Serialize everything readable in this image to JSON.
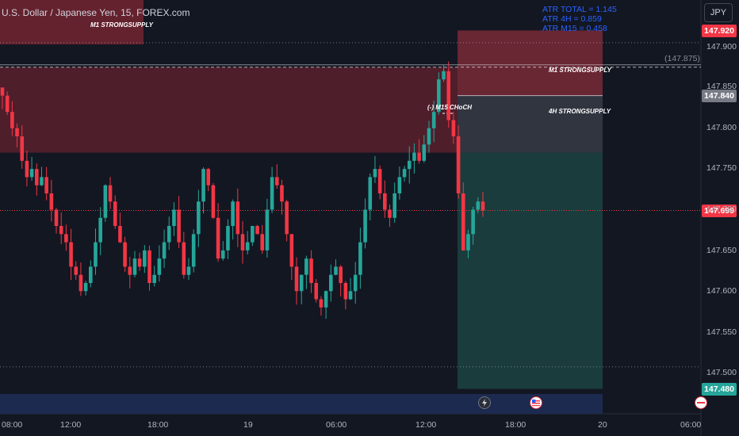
{
  "header": {
    "title": "U.S. Dollar / Japanese Yen, 15, FOREX.com",
    "currency": "JPY"
  },
  "atr": {
    "total": "ATR TOTAL = 1.145",
    "h4": "ATR 4H = 0.859",
    "m15": "ATR M15 = 0.458"
  },
  "zones": {
    "m1_supply_left": "M1 STRONGSUPPLY",
    "m1_supply_right": "M1 STRONGSUPPLY",
    "h4_supply": "4H STRONGSUPPLY",
    "choch": "(-) M15 CHoCH"
  },
  "price_tags": {
    "top": "147.920",
    "mid": "147.840",
    "last": "147.699",
    "bottom": "147.480"
  },
  "hint_price": "(147.875)",
  "colors": {
    "background": "#131722",
    "up": "#26a69a",
    "down": "#f23645",
    "supply_zone": "#802533",
    "target_zone": "#1e4a45",
    "accent": "#2962ff"
  },
  "icons": {
    "event_1": "lightning-icon",
    "event_2": "us-flag-icon"
  },
  "chart_data": {
    "type": "candlestick",
    "title": "U.S. Dollar / Japanese Yen, 15, FOREX.com",
    "xlabel": "",
    "ylabel": "",
    "ylim": [
      147.47,
      147.94
    ],
    "y_ticks": [
      "147.900",
      "147.850",
      "147.800",
      "147.750",
      "147.700",
      "147.650",
      "147.600",
      "147.550",
      "147.500"
    ],
    "x_ticks": [
      "08:00",
      "12:00",
      "18:00",
      "19",
      "06:00",
      "12:00",
      "18:00",
      "20",
      "06:00"
    ],
    "grid": false,
    "levels": {
      "m1_supply_top": 147.875,
      "m1_supply_bottom": 147.77,
      "h4_supply_top": 147.84,
      "h4_supply_bottom": 147.77,
      "short_stop": 147.92,
      "short_entry": 147.84,
      "short_target": 147.48,
      "last_price": 147.699,
      "dotted_upper": 147.905,
      "dotted_lower": 147.507
    },
    "path": [
      147.84,
      147.82,
      147.8,
      147.79,
      147.76,
      147.74,
      147.75,
      147.73,
      147.74,
      147.72,
      147.7,
      147.68,
      147.67,
      147.66,
      147.63,
      147.62,
      147.6,
      147.61,
      147.63,
      147.66,
      147.69,
      147.73,
      147.71,
      147.68,
      147.66,
      147.63,
      147.62,
      147.64,
      147.63,
      147.65,
      147.61,
      147.62,
      147.64,
      147.66,
      147.68,
      147.7,
      147.66,
      147.62,
      147.63,
      147.67,
      147.71,
      147.75,
      147.73,
      147.69,
      147.64,
      147.65,
      147.68,
      147.71,
      147.67,
      147.65,
      147.66,
      147.68,
      147.67,
      147.65,
      147.7,
      147.74,
      147.73,
      147.71,
      147.67,
      147.63,
      147.6,
      147.62,
      147.64,
      147.61,
      147.59,
      147.58,
      147.6,
      147.62,
      147.63,
      147.61,
      147.59,
      147.6,
      147.62,
      147.66,
      147.7,
      147.74,
      147.75,
      147.72,
      147.7,
      147.69,
      147.72,
      147.74,
      147.75,
      147.76,
      147.77,
      147.76,
      147.78,
      147.8,
      147.82,
      147.86,
      147.87,
      147.81,
      147.79,
      147.72,
      147.65,
      147.67,
      147.7,
      147.71,
      147.699
    ]
  }
}
